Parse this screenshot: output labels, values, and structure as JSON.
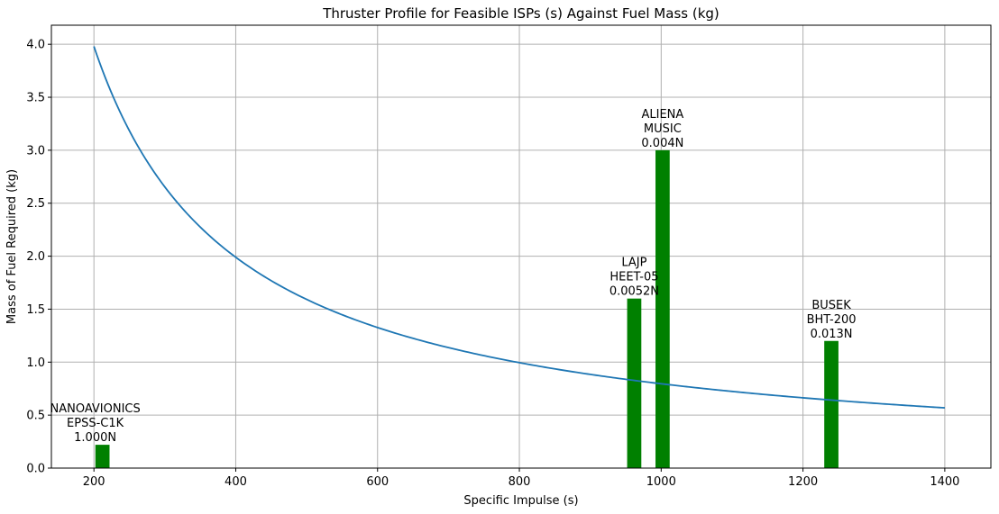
{
  "chart_data": {
    "type": "bar",
    "title": "Thruster Profile for Feasible ISPs (s) Against Fuel Mass (kg)",
    "xlabel": "Specific Impulse (s)",
    "ylabel": "Mass of Fuel Required (kg)",
    "xlim": [
      140,
      1465
    ],
    "ylim": [
      0,
      4.18
    ],
    "xticks": [
      200,
      400,
      600,
      800,
      1000,
      1200,
      1400
    ],
    "yticks": [
      0.0,
      0.5,
      1.0,
      1.5,
      2.0,
      2.5,
      3.0,
      3.5,
      4.0
    ],
    "grid": true,
    "colors": {
      "bar": "#008000",
      "curve": "#1f77b4"
    },
    "bars": [
      {
        "isp": 212,
        "mass": 0.22,
        "lines": [
          "NANOAVIONICS",
          "EPSS-C1K",
          "1.000N"
        ]
      },
      {
        "isp": 962,
        "mass": 1.6,
        "lines": [
          "LAJP",
          "HEET-05",
          "0.0052N"
        ]
      },
      {
        "isp": 1002,
        "mass": 3.0,
        "lines": [
          "ALIENA",
          "MUSIC",
          "0.004N"
        ]
      },
      {
        "isp": 1240,
        "mass": 1.2,
        "lines": [
          "BUSEK",
          "BHT-200",
          "0.013N"
        ]
      }
    ],
    "curve": {
      "function": "mass = 796 / isp",
      "x_range": [
        200,
        1400
      ]
    }
  }
}
